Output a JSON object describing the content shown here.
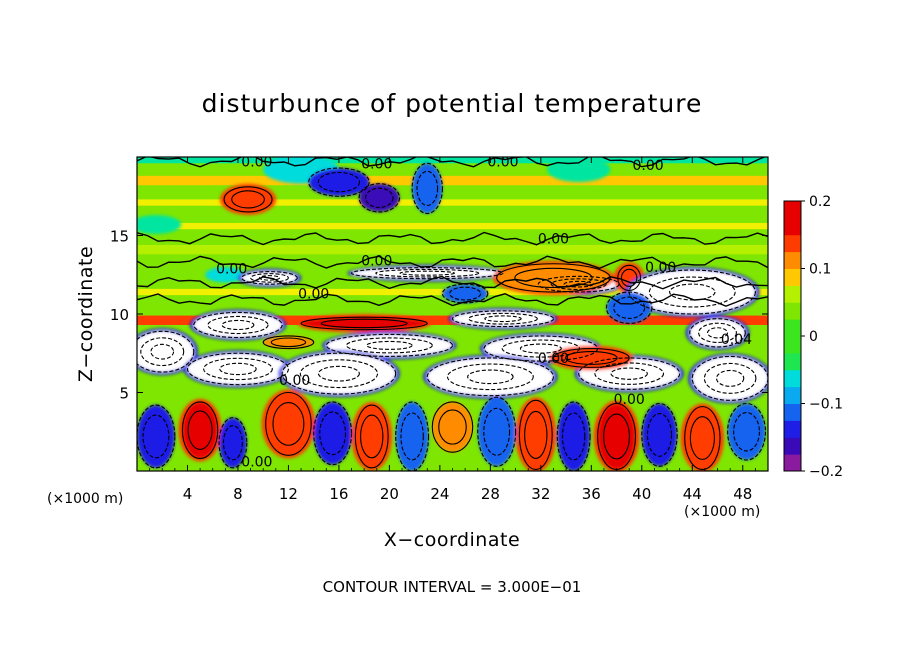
{
  "chart_data": {
    "type": "heatmap",
    "title": "disturbunce of potential temperature",
    "xlabel": "X−coordinate",
    "ylabel": "Z−coordinate",
    "x_unit": "(×1000 m)",
    "xlim": [
      0,
      50
    ],
    "ylim": [
      0,
      20
    ],
    "x_ticks": [
      4,
      8,
      12,
      16,
      20,
      24,
      28,
      32,
      36,
      40,
      44,
      48
    ],
    "y_ticks": [
      5,
      10,
      15
    ],
    "colorbar": {
      "range": [
        -0.2,
        0.2
      ],
      "ticks": [
        {
          "value": 0.2,
          "label": "0.2"
        },
        {
          "value": 0.1,
          "label": "0.1"
        },
        {
          "value": 0,
          "label": "0"
        },
        {
          "value": -0.1,
          "label": "−0.1"
        },
        {
          "value": -0.2,
          "label": "−0.2"
        }
      ]
    },
    "contour_interval_text": "CONTOUR INTERVAL = 3.000E−01",
    "contour_labels": [
      {
        "x": 9.5,
        "z": 19.7,
        "text": "0.00"
      },
      {
        "x": 19,
        "z": 19.6,
        "text": "0.00"
      },
      {
        "x": 29,
        "z": 19.7,
        "text": "0.00"
      },
      {
        "x": 40.5,
        "z": 19.5,
        "text": "0.00"
      },
      {
        "x": 33,
        "z": 14.8,
        "text": "0.00"
      },
      {
        "x": 19,
        "z": 13.4,
        "text": "0.00"
      },
      {
        "x": 7.5,
        "z": 12.9,
        "text": "0.00"
      },
      {
        "x": 14,
        "z": 11.3,
        "text": "0.00"
      },
      {
        "x": 41.5,
        "z": 13.0,
        "text": "0.00"
      },
      {
        "x": 47.5,
        "z": 8.4,
        "text": "0.04"
      },
      {
        "x": 33,
        "z": 7.2,
        "text": "0.00"
      },
      {
        "x": 12.5,
        "z": 5.8,
        "text": "0.00"
      },
      {
        "x": 39,
        "z": 4.6,
        "text": "0.00"
      },
      {
        "x": 9.5,
        "z": 0.6,
        "text": "0.00"
      }
    ],
    "field_layers": [
      {
        "z_min": 0,
        "z_max": 20,
        "value": 0.03
      },
      {
        "z_min": 18.2,
        "z_max": 18.8,
        "value": 0.1
      },
      {
        "z_min": 16.9,
        "z_max": 17.3,
        "value": 0.08
      },
      {
        "z_min": 15.4,
        "z_max": 15.8,
        "value": 0.07
      },
      {
        "z_min": 13.8,
        "z_max": 14.4,
        "value": 0.05
      },
      {
        "z_min": 11.2,
        "z_max": 11.6,
        "value": 0.08
      },
      {
        "z_min": 9.3,
        "z_max": 9.9,
        "value": 0.14
      },
      {
        "z_min": 19.6,
        "z_max": 20,
        "value": -0.05
      }
    ],
    "field_blobs": [
      {
        "x": 8.8,
        "z": 17.3,
        "rx": 1.9,
        "rz": 0.8,
        "value": 0.16
      },
      {
        "x": 13,
        "z": 19.2,
        "rx": 3.0,
        "rz": 0.9,
        "value": -0.08
      },
      {
        "x": 16,
        "z": 18.4,
        "rx": 2.4,
        "rz": 0.9,
        "value": -0.14
      },
      {
        "x": 19.2,
        "z": 17.4,
        "rx": 1.6,
        "rz": 0.9,
        "value": -0.18
      },
      {
        "x": 23,
        "z": 18.0,
        "rx": 1.2,
        "rz": 1.6,
        "value": -0.13
      },
      {
        "x": 35,
        "z": 19.2,
        "rx": 2.5,
        "rz": 0.8,
        "value": -0.05
      },
      {
        "x": 1.5,
        "z": 15.7,
        "rx": 2.0,
        "rz": 0.6,
        "value": -0.06
      },
      {
        "x": 7,
        "z": 12.5,
        "rx": 1.6,
        "rz": 0.5,
        "value": -0.07
      },
      {
        "x": 10.5,
        "z": 12.3,
        "rx": 2.2,
        "rz": 0.4,
        "value": -0.25
      },
      {
        "x": 23,
        "z": 12.6,
        "rx": 6.0,
        "rz": 0.35,
        "value": -0.25
      },
      {
        "x": 26,
        "z": 11.3,
        "rx": 1.8,
        "rz": 0.6,
        "value": -0.13
      },
      {
        "x": 35,
        "z": 11.9,
        "rx": 3.2,
        "rz": 0.5,
        "value": -0.25
      },
      {
        "x": 33,
        "z": 12.3,
        "rx": 4.5,
        "rz": 0.9,
        "value": 0.13
      },
      {
        "x": 39,
        "z": 12.3,
        "rx": 0.9,
        "rz": 0.8,
        "value": 0.16
      },
      {
        "x": 44,
        "z": 11.4,
        "rx": 5.0,
        "rz": 1.4,
        "value": -0.25
      },
      {
        "x": 39,
        "z": 10.4,
        "rx": 1.8,
        "rz": 1.0,
        "value": -0.12
      },
      {
        "x": 46,
        "z": 8.8,
        "rx": 2.2,
        "rz": 0.9,
        "value": -0.25
      },
      {
        "x": 29,
        "z": 9.7,
        "rx": 4.0,
        "rz": 0.5,
        "value": -0.25
      },
      {
        "x": 18,
        "z": 9.4,
        "rx": 5.0,
        "rz": 0.4,
        "value": 0.18
      },
      {
        "x": 8,
        "z": 9.3,
        "rx": 3.5,
        "rz": 0.8,
        "value": -0.25
      },
      {
        "x": 20,
        "z": 8.0,
        "rx": 5.0,
        "rz": 0.7,
        "value": -0.25
      },
      {
        "x": 32,
        "z": 7.8,
        "rx": 4.5,
        "rz": 0.8,
        "value": -0.25
      },
      {
        "x": 2,
        "z": 7.6,
        "rx": 2.5,
        "rz": 1.3,
        "value": -0.25
      },
      {
        "x": 8,
        "z": 6.5,
        "rx": 4.0,
        "rz": 1.0,
        "value": -0.25
      },
      {
        "x": 16,
        "z": 6.2,
        "rx": 4.5,
        "rz": 1.3,
        "value": -0.25
      },
      {
        "x": 28,
        "z": 6.0,
        "rx": 5.0,
        "rz": 1.2,
        "value": -0.25
      },
      {
        "x": 39,
        "z": 6.2,
        "rx": 4.0,
        "rz": 1.0,
        "value": -0.25
      },
      {
        "x": 47,
        "z": 5.9,
        "rx": 3.0,
        "rz": 1.4,
        "value": -0.25
      },
      {
        "x": 36,
        "z": 7.2,
        "rx": 3.0,
        "rz": 0.6,
        "value": 0.15
      },
      {
        "x": 12,
        "z": 8.2,
        "rx": 2.0,
        "rz": 0.4,
        "value": 0.12
      },
      {
        "x": 1.5,
        "z": 2.2,
        "rx": 1.5,
        "rz": 2.0,
        "value": -0.16
      },
      {
        "x": 5,
        "z": 2.6,
        "rx": 1.4,
        "rz": 1.8,
        "value": 0.17
      },
      {
        "x": 7.6,
        "z": 1.8,
        "rx": 1.1,
        "rz": 1.6,
        "value": -0.14
      },
      {
        "x": 12,
        "z": 3.0,
        "rx": 1.8,
        "rz": 2.0,
        "value": 0.15
      },
      {
        "x": 15.5,
        "z": 2.4,
        "rx": 1.5,
        "rz": 2.0,
        "value": -0.15
      },
      {
        "x": 18.6,
        "z": 2.2,
        "rx": 1.3,
        "rz": 2.0,
        "value": 0.14
      },
      {
        "x": 21.8,
        "z": 2.2,
        "rx": 1.3,
        "rz": 2.2,
        "value": -0.12
      },
      {
        "x": 25,
        "z": 2.8,
        "rx": 1.6,
        "rz": 1.6,
        "value": 0.12
      },
      {
        "x": 28.5,
        "z": 2.5,
        "rx": 1.5,
        "rz": 2.2,
        "value": -0.13
      },
      {
        "x": 31.6,
        "z": 2.3,
        "rx": 1.3,
        "rz": 2.2,
        "value": 0.16
      },
      {
        "x": 34.6,
        "z": 2.2,
        "rx": 1.3,
        "rz": 2.2,
        "value": -0.15
      },
      {
        "x": 38,
        "z": 2.2,
        "rx": 1.5,
        "rz": 2.1,
        "value": 0.17
      },
      {
        "x": 41.4,
        "z": 2.3,
        "rx": 1.4,
        "rz": 2.0,
        "value": -0.14
      },
      {
        "x": 44.8,
        "z": 2.1,
        "rx": 1.4,
        "rz": 2.0,
        "value": 0.16
      },
      {
        "x": 48.3,
        "z": 2.5,
        "rx": 1.5,
        "rz": 1.8,
        "value": -0.13
      }
    ]
  }
}
